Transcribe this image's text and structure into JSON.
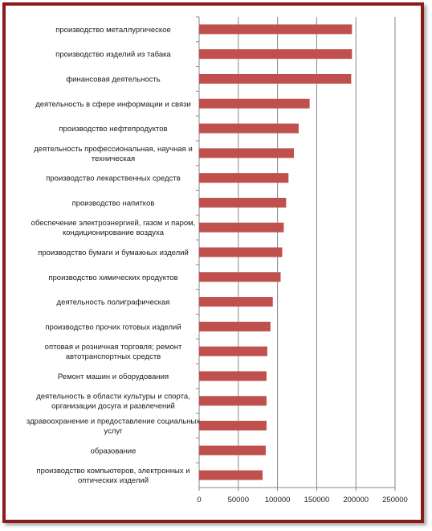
{
  "chart_data": {
    "type": "bar",
    "orientation": "horizontal",
    "categories": [
      [
        "производство металлургическое"
      ],
      [
        "производство изделий из табака"
      ],
      [
        "финансовая деятельность"
      ],
      [
        "деятельность в сфере информации и связи"
      ],
      [
        "производство нефтепродуктов"
      ],
      [
        "деятельность профессиональная, научная и",
        "техническая"
      ],
      [
        "производство лекарственных средств"
      ],
      [
        "производство напитков"
      ],
      [
        "обеспечение электроэнергией, газом и паром,",
        "кондиционирование воздуха"
      ],
      [
        "производство бумаги и бумажных изделий"
      ],
      [
        "производство химических продуктов"
      ],
      [
        "деятельность  полиграфическая"
      ],
      [
        "производство прочих  готовых изделий"
      ],
      [
        "оптовая и розничная торговля; ремонт",
        "автотранспортных средств"
      ],
      [
        "Ремонт машин и оборудования"
      ],
      [
        "деятельность в области культуры и    спорта,",
        "организации досуга и развлечений"
      ],
      [
        "здравоохранение и  предоставление социальных",
        "услуг"
      ],
      [
        "образование"
      ],
      [
        "производство компьютеров, электронных и",
        "оптических изделий"
      ]
    ],
    "values": [
      195000,
      195000,
      194000,
      141000,
      127000,
      121000,
      114000,
      111000,
      108000,
      106000,
      104000,
      94000,
      91000,
      87000,
      86000,
      86000,
      86000,
      85000,
      81000
    ],
    "xlim": [
      0,
      250000
    ],
    "xticks": [
      "0",
      "50000",
      "100000",
      "150000",
      "200000",
      "250000"
    ],
    "xtick_values": [
      0,
      50000,
      100000,
      150000,
      200000,
      250000
    ],
    "bar_color": "#c0504d",
    "grid": "vertical",
    "legend": "none",
    "title": "",
    "xlabel": "",
    "ylabel": ""
  }
}
